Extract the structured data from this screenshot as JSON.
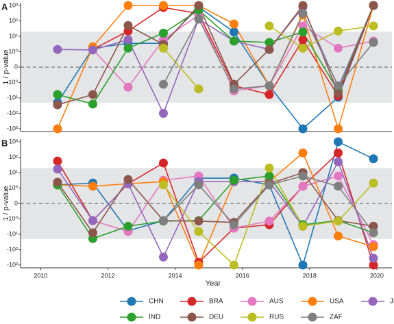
{
  "chart_data": [
    {
      "type": "line",
      "panel_label": "A",
      "ylabel": "1 / p-value",
      "yscale": "symlog",
      "xlim": [
        2009.4,
        2020.45
      ],
      "ylim": [
        -1000,
        1000
      ],
      "yticks": [
        {
          "value": -1000,
          "label": "-10³"
        },
        {
          "value": -100,
          "label": "-10²"
        },
        {
          "value": -10,
          "label": "-10¹"
        },
        {
          "value": -1,
          "label": "-10⁰"
        },
        0,
        {
          "value": 1,
          "label": "10⁰"
        },
        {
          "value": 10,
          "label": "10¹"
        },
        {
          "value": 100,
          "label": "10²"
        },
        {
          "value": 1000,
          "label": "10³"
        }
      ],
      "shaded_range": [
        -20,
        20
      ],
      "reference_line": 0,
      "x": [
        2010.5,
        2011.55,
        2012.6,
        2013.65,
        2014.7,
        2015.75,
        2016.8,
        2017.8,
        2018.85,
        2019.9
      ],
      "series": [
        {
          "name": "CHN",
          "color": "#1f77b4",
          "values": [
            -20,
            1.7,
            3.5,
            3.5,
            790,
            19,
            -1.6,
            -1000,
            -9,
            1000
          ]
        },
        {
          "name": "BRA",
          "color": "#d62728",
          "values": [
            null,
            1.4,
            22,
            740,
            300,
            -1.6,
            -6,
            6,
            -7.4,
            1000
          ]
        },
        {
          "name": "AUS",
          "color": "#e377c2",
          "values": [
            null,
            1.4,
            -2,
            6,
            240,
            -3.5,
            -1.6,
            47,
            1.7,
            4.9
          ]
        },
        {
          "name": "USA",
          "color": "#ff7f0e",
          "values": [
            -1000,
            2.1,
            1000,
            1000,
            1000,
            63,
            -1.6,
            240,
            -1000,
            1000
          ]
        },
        {
          "name": "JPN",
          "color": "#9467bd",
          "values": [
            1.4,
            1.3,
            6,
            -100,
            130,
            4.9,
            1.4,
            790,
            -2,
            1000
          ]
        },
        {
          "name": "IND",
          "color": "#2ca02c",
          "values": [
            -6,
            -25,
            1.7,
            16,
            500,
            4.9,
            4,
            19,
            -3.5,
            1000
          ]
        },
        {
          "name": "DEU",
          "color": "#8c564b",
          "values": [
            -28,
            -6,
            50,
            3,
            1000,
            -1.3,
            1.4,
            1000,
            -5,
            1000
          ]
        },
        {
          "name": "RUS",
          "color": "#bcbd22",
          "values": [
            null,
            null,
            null,
            1.7,
            -2.6,
            null,
            47,
            1.7,
            22,
            47
          ]
        },
        {
          "name": "ZAF",
          "color": "#7f7f7f",
          "values": [
            null,
            null,
            null,
            -1.3,
            130,
            -2.6,
            -1.6,
            300,
            -1.6,
            4
          ]
        }
      ]
    },
    {
      "type": "line",
      "panel_label": "B",
      "ylabel": "1 / p-value",
      "xlabel": "Year",
      "yscale": "symlog",
      "xlim": [
        2009.4,
        2020.45
      ],
      "ylim": [
        -1000,
        1000
      ],
      "xticks": [
        2010,
        2012,
        2014,
        2016,
        2018,
        2020
      ],
      "yticks": [
        {
          "value": -1000,
          "label": "-10³"
        },
        {
          "value": -100,
          "label": "-10²"
        },
        {
          "value": -10,
          "label": "-10¹"
        },
        {
          "value": -1,
          "label": "-10⁰"
        },
        0,
        {
          "value": 1,
          "label": "10⁰"
        },
        {
          "value": 10,
          "label": "10¹"
        },
        {
          "value": 100,
          "label": "10²"
        },
        {
          "value": 1000,
          "label": "10³"
        }
      ],
      "shaded_range": [
        -20,
        20
      ],
      "reference_line": 0,
      "x": [
        2010.5,
        2011.55,
        2012.6,
        2013.65,
        2014.7,
        2015.75,
        2016.8,
        2017.8,
        2018.85,
        2019.9
      ],
      "series": [
        {
          "name": "CHN",
          "color": "#1f77b4",
          "values": [
            1.6,
            2.1,
            -6,
            -1.3,
            4.4,
            4.4,
            1.6,
            -1000,
            1000,
            79
          ]
        },
        {
          "name": "BRA",
          "color": "#d62728",
          "values": [
            56,
            -1.3,
            1.9,
            42,
            -660,
            -4,
            -2.4,
            1.3,
            190,
            -1000
          ]
        },
        {
          "name": "AUS",
          "color": "#e377c2",
          "values": [
            null,
            -1.3,
            -6.6,
            3.2,
            6,
            -4,
            -1.4,
            1.3,
            6,
            -47
          ]
        },
        {
          "name": "USA",
          "color": "#ff7f0e",
          "values": [
            1.6,
            1.3,
            1.9,
            2.6,
            -1000,
            2.6,
            2.6,
            190,
            -13,
            -63
          ]
        },
        {
          "name": "JPN",
          "color": "#9467bd",
          "values": [
            17,
            -1.3,
            1.9,
            -300,
            2.6,
            2.6,
            2.6,
            -3,
            50,
            -360
          ]
        },
        {
          "name": "IND",
          "color": "#2ca02c",
          "values": [
            1.6,
            -19,
            -3,
            -1.4,
            -1.3,
            3.2,
            6,
            -2.4,
            -1.3,
            -8
          ]
        },
        {
          "name": "DEU",
          "color": "#8c564b",
          "values": [
            2.4,
            -8,
            3.6,
            -1.3,
            -1.4,
            -1.7,
            1.9,
            10,
            -1.3,
            -3
          ]
        },
        {
          "name": "RUS",
          "color": "#bcbd22",
          "values": [
            null,
            null,
            null,
            1.6,
            -6.6,
            -1000,
            20,
            -3,
            -1.4,
            2.1
          ]
        },
        {
          "name": "ZAF",
          "color": "#7f7f7f",
          "values": [
            null,
            null,
            null,
            -1.3,
            1.6,
            -2.4,
            1.6,
            6,
            1.3,
            -8
          ]
        }
      ]
    }
  ]
}
